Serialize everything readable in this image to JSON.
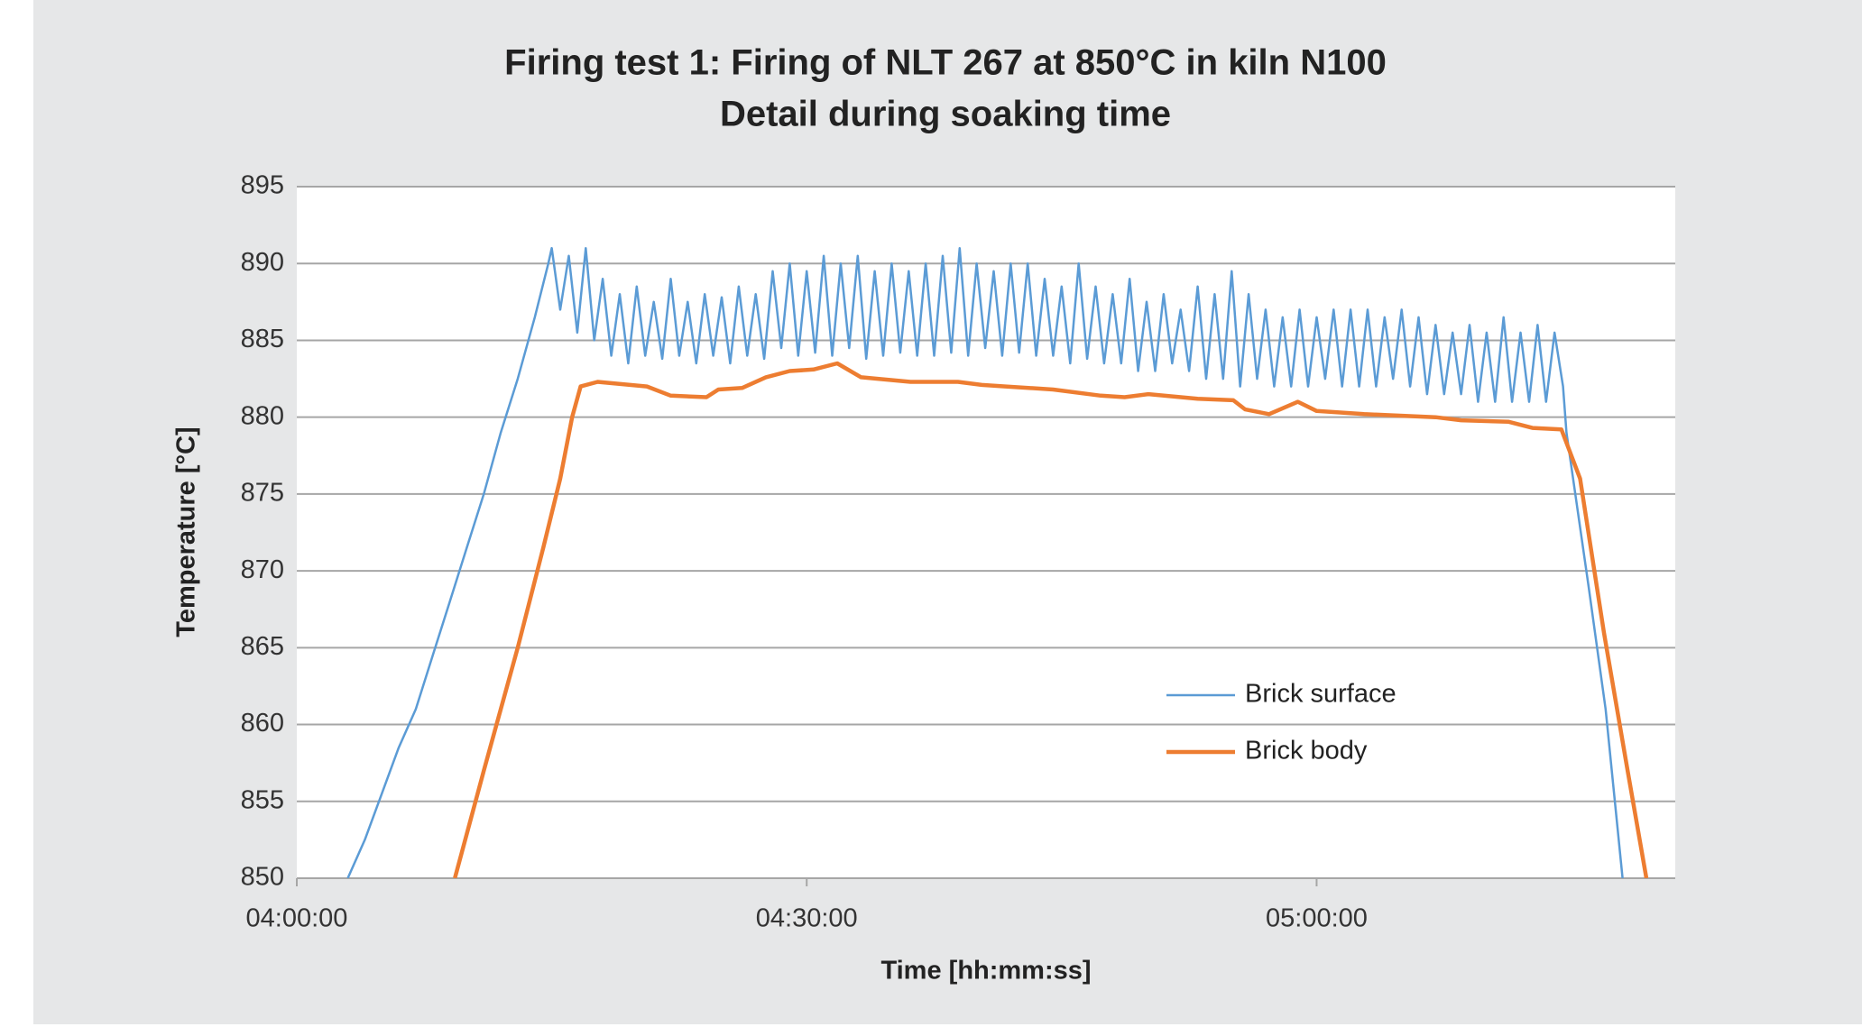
{
  "chart_data": {
    "type": "line",
    "title": "Firing test 1: Firing of NLT 267 at 850°C in kiln N100",
    "subtitle": "Detail during soaking time",
    "x_label": "Time [hh:mm:ss]",
    "y_label": "Temperature [°C]",
    "xlim": [
      240,
      321.1
    ],
    "xticks": [
      {
        "value": 240,
        "label": "04:00:00"
      },
      {
        "value": 270,
        "label": "04:30:00"
      },
      {
        "value": 300,
        "label": "05:00:00"
      }
    ],
    "ylim": [
      850,
      895
    ],
    "yticks": [
      850,
      855,
      860,
      865,
      870,
      875,
      880,
      885,
      890,
      895
    ],
    "grid": true,
    "legend_position": "lower-right",
    "series": [
      {
        "name": "Brick surface",
        "color": "#5b9bd5",
        "x": [
          243,
          244,
          245,
          246,
          247,
          248,
          249,
          250,
          251,
          252,
          253,
          254,
          254.8,
          255,
          255.5,
          256,
          256.5,
          257,
          257.5,
          258,
          258.5,
          259,
          259.5,
          260,
          260.5,
          261,
          261.5,
          262,
          262.5,
          263,
          263.5,
          264,
          264.5,
          265,
          265.5,
          266,
          266.5,
          267,
          267.5,
          268,
          268.5,
          269,
          269.5,
          270,
          270.5,
          271,
          271.5,
          272,
          272.5,
          273,
          273.5,
          274,
          274.5,
          275,
          275.5,
          276,
          276.5,
          277,
          277.5,
          278,
          278.5,
          279,
          279.5,
          280,
          280.5,
          281,
          281.5,
          282,
          282.5,
          283,
          283.5,
          284,
          284.5,
          285,
          285.5,
          286,
          286.5,
          287,
          287.5,
          288,
          288.5,
          289,
          289.5,
          290,
          290.5,
          291,
          291.5,
          292,
          292.5,
          293,
          293.5,
          294,
          294.5,
          295,
          295.5,
          296,
          296.5,
          297,
          297.5,
          298,
          298.5,
          299,
          299.5,
          300,
          300.5,
          301,
          301.5,
          302,
          302.5,
          303,
          303.5,
          304,
          304.5,
          305,
          305.5,
          306,
          306.5,
          307,
          307.5,
          308,
          308.5,
          309,
          309.5,
          310,
          310.5,
          311,
          311.5,
          312,
          312.5,
          313,
          313.5,
          314,
          314.5,
          314.7,
          316,
          317,
          318
        ],
        "values": [
          850,
          852.5,
          855.5,
          858.5,
          861,
          864.5,
          868,
          871.5,
          875,
          879,
          882.5,
          886.5,
          890,
          891,
          887,
          890.5,
          885.5,
          891,
          885,
          889,
          884,
          888,
          883.5,
          888.5,
          884,
          887.5,
          883.8,
          889,
          884,
          887.5,
          883.5,
          888,
          884,
          887.8,
          883.5,
          888.5,
          884,
          888,
          883.8,
          889.5,
          884.5,
          890,
          884,
          889.5,
          884.2,
          890.5,
          884,
          890,
          884.5,
          890.5,
          883.8,
          889.5,
          884,
          890,
          884.2,
          889.5,
          884,
          890,
          884,
          890.5,
          884.2,
          891,
          884,
          890,
          884.5,
          889.5,
          884,
          890,
          884.2,
          890,
          884,
          889,
          884,
          888.5,
          883.5,
          890,
          883.8,
          888.5,
          883.5,
          888,
          883.5,
          889,
          883,
          887.5,
          883,
          888,
          883.5,
          887,
          883,
          888.5,
          882.5,
          888,
          882.5,
          889.5,
          882,
          888,
          882.5,
          887,
          882,
          886.5,
          882,
          887,
          882,
          886.5,
          882.5,
          887,
          882,
          887,
          882,
          887,
          882,
          886.5,
          882.5,
          887,
          882,
          886.5,
          881.5,
          886,
          881.5,
          885.5,
          881.5,
          886,
          881,
          885.5,
          881,
          886.5,
          881,
          885.5,
          881,
          886,
          881,
          885.5,
          882,
          879,
          869,
          861,
          850
        ]
      },
      {
        "name": "Brick body",
        "color": "#ed7d31",
        "x": [
          249.3,
          251,
          253,
          254.5,
          255.5,
          256.2,
          256.7,
          257.7,
          260.6,
          262,
          264.1,
          264.8,
          266.2,
          267.6,
          269,
          270.4,
          271.8,
          273.2,
          276.1,
          278.9,
          280.3,
          281.7,
          284.5,
          287.3,
          288.7,
          290.1,
          293,
          295.1,
          295.8,
          297.2,
          298.9,
          300,
          302.8,
          307,
          308.5,
          311.3,
          312.7,
          314.4,
          315.5,
          316.9,
          318.3,
          319.4
        ],
        "values": [
          850,
          857,
          865,
          871.5,
          876,
          880,
          882,
          882.3,
          882,
          881.4,
          881.3,
          881.8,
          881.9,
          882.6,
          883,
          883.1,
          883.5,
          882.6,
          882.3,
          882.3,
          882.1,
          882,
          881.8,
          881.4,
          881.3,
          881.5,
          881.2,
          881.1,
          880.5,
          880.2,
          881,
          880.4,
          880.2,
          880,
          879.8,
          879.7,
          879.3,
          879.2,
          876,
          866,
          857,
          850
        ]
      }
    ]
  }
}
